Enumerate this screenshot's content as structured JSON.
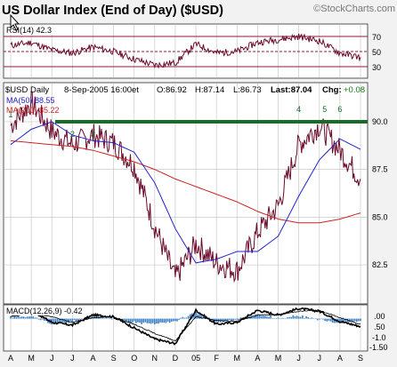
{
  "header": {
    "title": "US Dollar Index (End of Day) ($USD)",
    "watermark": "©StockCharts.com"
  },
  "rsi_panel": {
    "label": "RSI(14) 42.3",
    "ticks": [
      "70",
      "50",
      "30"
    ]
  },
  "price_panel": {
    "symbol": "$USD Daily",
    "date": "8-Sep-2005 16:00et",
    "open": "O:86.92",
    "high": "H:87.14",
    "low": "L:86.73",
    "last": "Last:87.04",
    "change_label": "Chg:",
    "change": "+0.08",
    "ma50_label": "MA(50) 88.55",
    "ma200_label": "MA(200) 85.22",
    "y_ticks": [
      "90.0",
      "87.5",
      "85.0",
      "82.5"
    ],
    "annotations": [
      "1",
      "2",
      "3",
      "4",
      "5",
      "6"
    ],
    "support_line_value": 90.0
  },
  "macd_panel": {
    "label": "MACD(12,26,9) -0.42",
    "ticks": [
      ".00",
      ".50",
      "-1.0",
      "-1.50"
    ]
  },
  "x_axis": {
    "labels": [
      "A",
      "M",
      "J",
      "J",
      "A",
      "S",
      "O",
      "N",
      "D",
      "05",
      "F",
      "M",
      "A",
      "M",
      "J",
      "J",
      "A",
      "S"
    ]
  },
  "colors": {
    "price": "#6b0a2a",
    "ma50": "#2222cc",
    "ma200": "#cc2222",
    "support": "#1a6b2a",
    "rsi": "#6b0a2a",
    "macd": "#000000",
    "signal": "#000000",
    "histogram": "#3a80c8",
    "band": "#8b1a3a"
  },
  "chart_data": {
    "type": "line",
    "title": "US Dollar Index (End of Day) ($USD)",
    "x": [
      "2004-04",
      "2004-05",
      "2004-06",
      "2004-07",
      "2004-08",
      "2004-09",
      "2004-10",
      "2004-11",
      "2004-12",
      "2005-01",
      "2005-02",
      "2005-03",
      "2005-04",
      "2005-05",
      "2005-06",
      "2005-07",
      "2005-08",
      "2005-09"
    ],
    "series": [
      {
        "name": "$USD",
        "values": [
          89.8,
          91.0,
          89.5,
          88.8,
          89.3,
          88.9,
          87.7,
          84.5,
          81.8,
          83.6,
          82.6,
          82.2,
          84.2,
          85.6,
          88.8,
          89.8,
          88.5,
          87.0
        ]
      },
      {
        "name": "MA(50)",
        "values": [
          88.8,
          89.6,
          90.0,
          89.3,
          89.0,
          88.9,
          88.4,
          86.8,
          84.4,
          82.6,
          82.8,
          83.2,
          83.2,
          84.0,
          86.1,
          88.0,
          89.1,
          88.55
        ]
      },
      {
        "name": "MA(200)",
        "values": [
          89.0,
          88.9,
          88.8,
          88.7,
          88.5,
          88.2,
          87.9,
          87.5,
          87.0,
          86.6,
          86.2,
          85.8,
          85.3,
          84.9,
          84.7,
          84.7,
          84.9,
          85.22
        ]
      }
    ],
    "ylim": [
      80.5,
      92.0
    ],
    "rsi": {
      "name": "RSI(14)",
      "last": 42.3,
      "levels": [
        70,
        50,
        30
      ],
      "values": [
        58,
        62,
        52,
        48,
        56,
        50,
        40,
        32,
        35,
        60,
        48,
        50,
        62,
        66,
        70,
        64,
        48,
        42.3
      ]
    },
    "macd": {
      "name": "MACD(12,26,9)",
      "last": -0.42,
      "ylim": [
        -1.7,
        0.7
      ],
      "values": [
        0.2,
        0.45,
        -0.2,
        -0.35,
        0.2,
        0.1,
        -0.5,
        -1.1,
        -1.35,
        0.45,
        -0.3,
        -0.2,
        0.45,
        0.2,
        0.55,
        0.4,
        -0.15,
        -0.42
      ],
      "signal": [
        0.1,
        0.3,
        0.1,
        -0.2,
        0.05,
        0.1,
        -0.3,
        -0.8,
        -1.2,
        0.1,
        -0.1,
        -0.15,
        0.2,
        0.2,
        0.4,
        0.45,
        0.05,
        -0.3
      ]
    },
    "annotations": [
      {
        "label": "1",
        "x": "2004-04"
      },
      {
        "label": "2",
        "x": "2004-07"
      },
      {
        "label": "3",
        "x": "2004-08"
      },
      {
        "label": "4",
        "x": "2005-06"
      },
      {
        "label": "5",
        "x": "2005-07"
      },
      {
        "label": "6",
        "x": "2005-08"
      }
    ],
    "support_line": 90.0,
    "grid": true,
    "legend": "top-left"
  }
}
